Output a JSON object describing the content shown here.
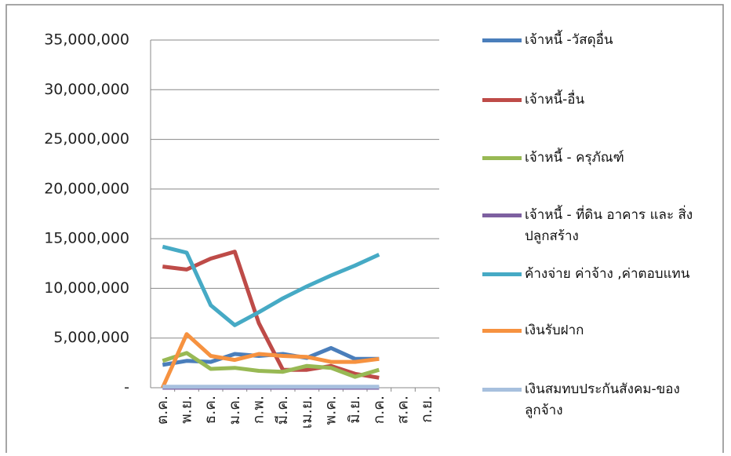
{
  "chart_data": {
    "type": "line",
    "categories": [
      "ต.ค.",
      "พ.ย.",
      "ธ.ค.",
      "ม.ค.",
      "ก.พ.",
      "มี.ค.",
      "เม.ย.",
      "พ.ค.",
      "มิ.ย.",
      "ก.ค.",
      "ส.ค.",
      "ก.ย."
    ],
    "series": [
      {
        "name": "เจ้าหนี้ -วัสดุอื่น",
        "color": "#4a7ebb",
        "values": [
          2300000,
          2700000,
          2600000,
          3400000,
          3200000,
          3400000,
          3000000,
          4000000,
          2900000,
          2900000,
          null,
          null
        ]
      },
      {
        "name": "เจ้าหนี้-อื่น",
        "color": "#be4b48",
        "values": [
          12200000,
          11900000,
          13000000,
          13700000,
          6500000,
          1800000,
          1800000,
          2200000,
          1400000,
          1000000,
          null,
          null
        ]
      },
      {
        "name": "เจ้าหนี้ -  ครุภัณฑ์",
        "color": "#98b954",
        "values": [
          2700000,
          3500000,
          1900000,
          2000000,
          1700000,
          1600000,
          2200000,
          2000000,
          1100000,
          1800000,
          null,
          null
        ]
      },
      {
        "name": "เจ้าหนี้ -  ที่ดิน อาคาร และ สิ่งปลูกสร้าง",
        "color": "#7d60a0",
        "values": [
          0,
          0,
          0,
          0,
          0,
          0,
          0,
          0,
          0,
          0,
          null,
          null
        ]
      },
      {
        "name": "ค้างจ่าย ค่าจ้าง ,ค่าตอบแทน",
        "color": "#46aac5",
        "values": [
          14200000,
          13600000,
          8300000,
          6300000,
          7600000,
          9000000,
          10200000,
          11300000,
          12300000,
          13400000,
          null,
          null
        ]
      },
      {
        "name": "เงินรับฝาก",
        "color": "#f69240",
        "values": [
          0,
          5400000,
          3200000,
          2800000,
          3400000,
          3200000,
          3100000,
          2600000,
          2600000,
          2900000,
          null,
          null
        ]
      },
      {
        "name": "เงินสมทบประกันสังคม-ของลูกจ้าง",
        "color": "#a7c0de",
        "values": [
          100000,
          100000,
          100000,
          100000,
          100000,
          100000,
          100000,
          100000,
          100000,
          100000,
          null,
          null
        ]
      }
    ],
    "ylim": [
      0,
      35000000
    ],
    "yticks": [
      {
        "value": 0,
        "label": "-"
      },
      {
        "value": 5000000,
        "label": "5,000,000"
      },
      {
        "value": 10000000,
        "label": "10,000,000"
      },
      {
        "value": 15000000,
        "label": "15,000,000"
      },
      {
        "value": 20000000,
        "label": "20,000,000"
      },
      {
        "value": 25000000,
        "label": "25,000,000"
      },
      {
        "value": 30000000,
        "label": "30,000,000"
      },
      {
        "value": 35000000,
        "label": "35,000,000"
      }
    ],
    "grid": true,
    "legend": "right"
  }
}
